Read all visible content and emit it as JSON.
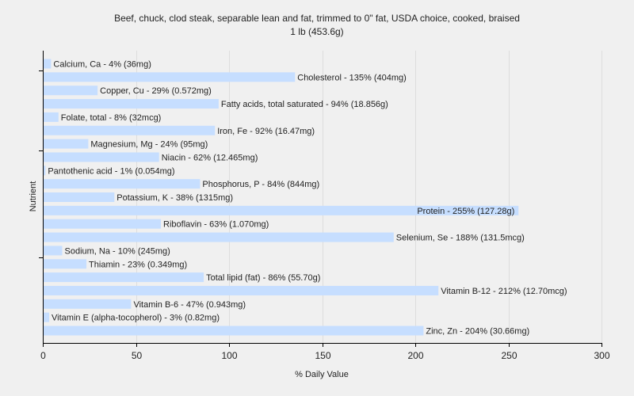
{
  "chart_data": {
    "type": "bar",
    "orientation": "horizontal",
    "title": "Beef, chuck, clod steak, separable lean and fat, trimmed to 0\" fat, USDA choice, cooked, braised",
    "subtitle": "1 lb (453.6g)",
    "xlabel": "% Daily Value",
    "ylabel": "Nutrient",
    "xlim": [
      0,
      300
    ],
    "xticks": [
      0,
      50,
      100,
      150,
      200,
      250,
      300
    ],
    "grid": true,
    "bar_color": "#c6deff",
    "categories": [
      "Calcium, Ca",
      "Cholesterol",
      "Copper, Cu",
      "Fatty acids, total saturated",
      "Folate, total",
      "Iron, Fe",
      "Magnesium, Mg",
      "Niacin",
      "Pantothenic acid",
      "Phosphorus, P",
      "Potassium, K",
      "Protein",
      "Riboflavin",
      "Selenium, Se",
      "Sodium, Na",
      "Thiamin",
      "Total lipid (fat)",
      "Vitamin B-12",
      "Vitamin B-6",
      "Vitamin E (alpha-tocopherol)",
      "Zinc, Zn"
    ],
    "values": [
      4,
      135,
      29,
      94,
      8,
      92,
      24,
      62,
      1,
      84,
      38,
      255,
      63,
      188,
      10,
      23,
      86,
      212,
      47,
      3,
      204
    ],
    "labels": [
      "Calcium, Ca - 4% (36mg)",
      "Cholesterol - 135% (404mg)",
      "Copper, Cu - 29% (0.572mg)",
      "Fatty acids, total saturated - 94% (18.856g)",
      "Folate, total - 8% (32mcg)",
      "Iron, Fe - 92% (16.47mg)",
      "Magnesium, Mg - 24% (95mg)",
      "Niacin - 62% (12.465mg)",
      "Pantothenic acid - 1% (0.054mg)",
      "Phosphorus, P - 84% (844mg)",
      "Potassium, K - 38% (1315mg)",
      "Protein - 255% (127.28g)",
      "Riboflavin - 63% (1.070mg)",
      "Selenium, Se - 188% (131.5mcg)",
      "Sodium, Na - 10% (245mg)",
      "Thiamin - 23% (0.349mg)",
      "Total lipid (fat) - 86% (55.70g)",
      "Vitamin B-12 - 212% (12.70mcg)",
      "Vitamin B-6 - 47% (0.943mg)",
      "Vitamin E (alpha-tocopherol) - 3% (0.82mg)",
      "Zinc, Zn - 204% (30.66mg)"
    ]
  }
}
